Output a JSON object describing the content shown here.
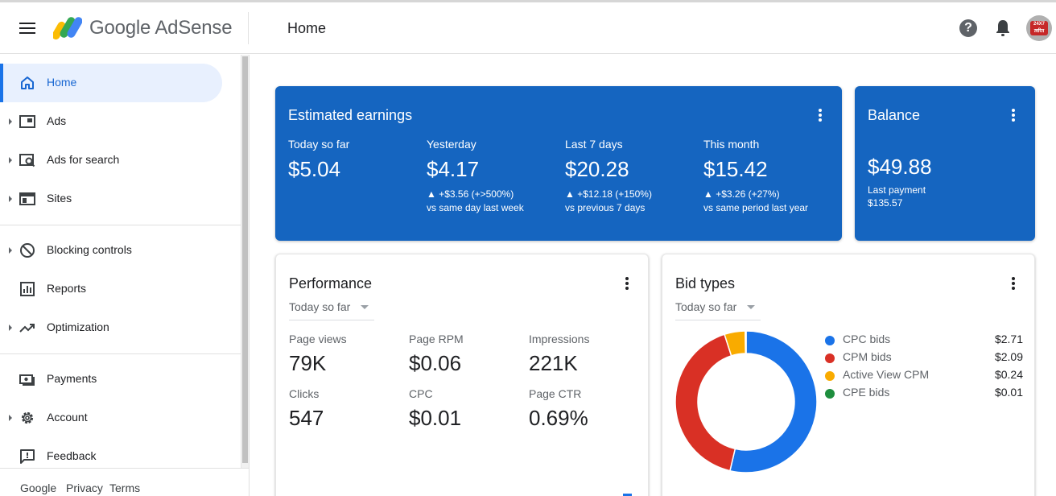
{
  "header": {
    "logo_text": "Google AdSense",
    "page_title": "Home",
    "help_glyph": "?",
    "avatar_text": "24X7 त्वरित"
  },
  "sidebar": {
    "items": [
      {
        "label": "Home",
        "icon": "home-icon",
        "active": true
      },
      {
        "label": "Ads",
        "icon": "ads-icon"
      },
      {
        "label": "Ads for search",
        "icon": "ads-for-search-icon"
      },
      {
        "label": "Sites",
        "icon": "sites-icon"
      },
      {
        "label": "Blocking controls",
        "icon": "block-icon"
      },
      {
        "label": "Reports",
        "icon": "bar-chart-icon"
      },
      {
        "label": "Optimization",
        "icon": "trending-up-icon"
      },
      {
        "label": "Payments",
        "icon": "payments-icon"
      },
      {
        "label": "Account",
        "icon": "gear-icon"
      },
      {
        "label": "Feedback",
        "icon": "feedback-icon"
      }
    ],
    "footer": {
      "google": "Google",
      "privacy": "Privacy",
      "terms": "Terms"
    }
  },
  "earnings": {
    "title": "Estimated earnings",
    "metrics": [
      {
        "label": "Today so far",
        "value": "$5.04",
        "change": "",
        "compare": ""
      },
      {
        "label": "Yesterday",
        "value": "$4.17",
        "change": "▲ +$3.56 (+>500%)",
        "compare": "vs same day last week"
      },
      {
        "label": "Last 7 days",
        "value": "$20.28",
        "change": "▲ +$12.18 (+150%)",
        "compare": "vs previous 7 days"
      },
      {
        "label": "This month",
        "value": "$15.42",
        "change": "▲ +$3.26 (+27%)",
        "compare": "vs same period last year"
      }
    ]
  },
  "balance": {
    "title": "Balance",
    "value": "$49.88",
    "last_payment_label": "Last payment",
    "last_payment_value": "$135.57"
  },
  "performance": {
    "title": "Performance",
    "range": "Today so far",
    "metrics": [
      {
        "label": "Page views",
        "value": "79K"
      },
      {
        "label": "Page RPM",
        "value": "$0.06"
      },
      {
        "label": "Impressions",
        "value": "221K"
      },
      {
        "label": "Clicks",
        "value": "547"
      },
      {
        "label": "CPC",
        "value": "$0.01"
      },
      {
        "label": "Page CTR",
        "value": "0.69%"
      }
    ]
  },
  "bid_types": {
    "title": "Bid types",
    "range": "Today so far",
    "legend": [
      {
        "name": "CPC bids",
        "value": "$2.71",
        "color": "#1a73e8"
      },
      {
        "name": "CPM bids",
        "value": "$2.09",
        "color": "#d93025"
      },
      {
        "name": "Active View CPM",
        "value": "$0.24",
        "color": "#f9ab00"
      },
      {
        "name": "CPE bids",
        "value": "$0.01",
        "color": "#1e8e3e"
      }
    ]
  },
  "colors": {
    "brand_blue": "#1565c0",
    "accent": "#1a73e8"
  }
}
